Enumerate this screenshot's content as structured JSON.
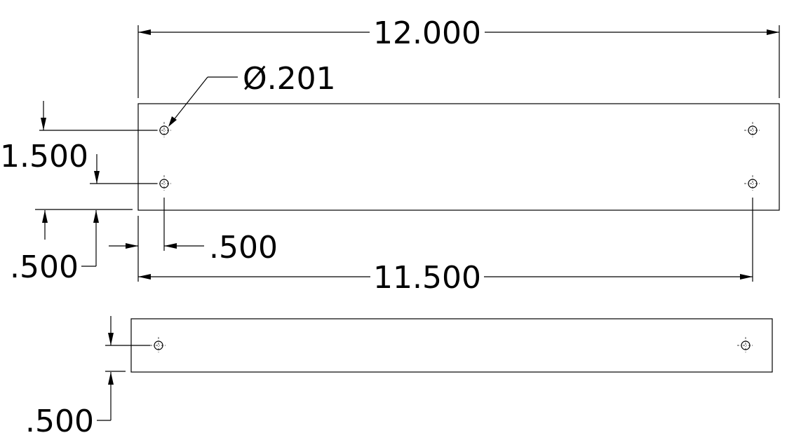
{
  "drawing": {
    "overall_length": "12.000",
    "hole_spacing": "11.500",
    "hole_diameter": "Ø.201",
    "hole_row_spacing": "1.500",
    "edge_offset_bottom": ".500",
    "edge_offset_left": ".500",
    "side_edge_offset": ".500"
  },
  "colors": {
    "line": "#000000",
    "background": "#ffffff"
  }
}
